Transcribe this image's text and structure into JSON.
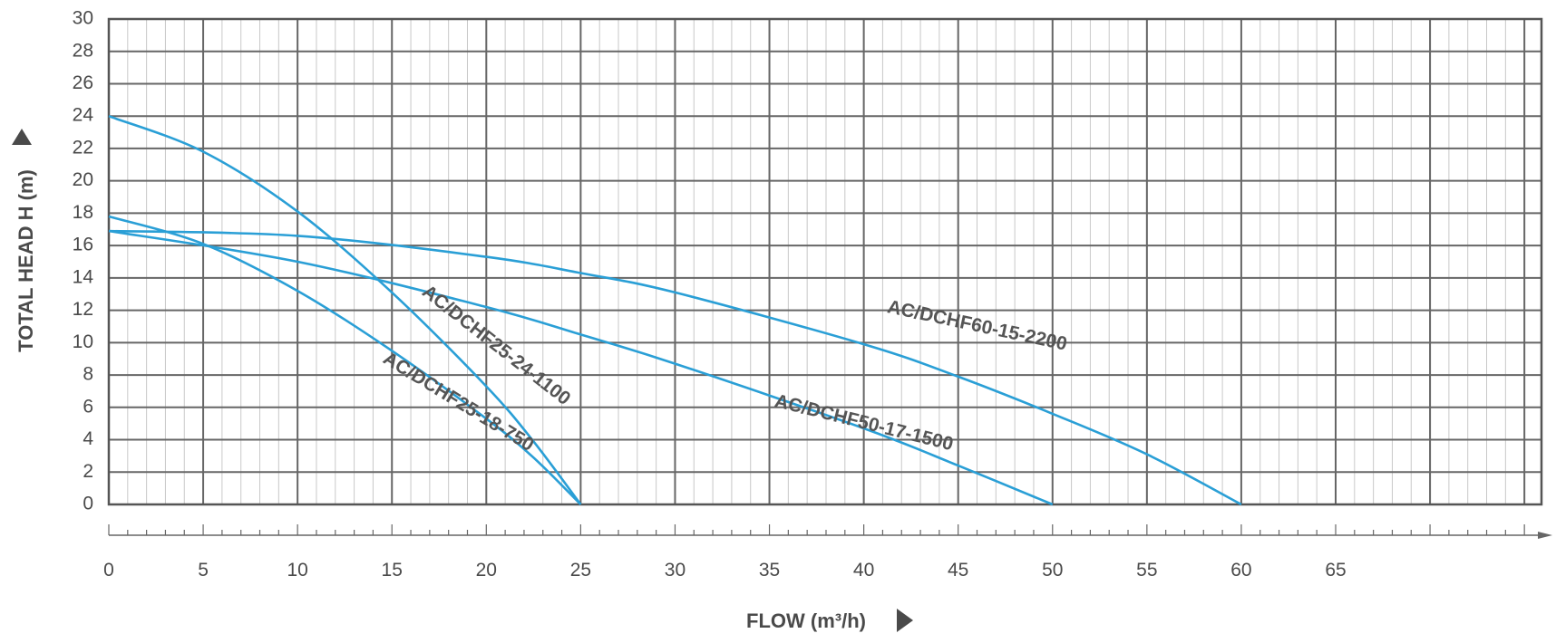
{
  "chart_data": {
    "type": "line",
    "xlabel": "FLOW (m³/h)",
    "ylabel": "TOTAL HEAD H (m)",
    "xlim": [
      0,
      70
    ],
    "ylim": [
      0,
      30
    ],
    "x_ticks": [
      "0",
      "5",
      "10",
      "15",
      "20",
      "25",
      "30",
      "35",
      "40",
      "45",
      "50",
      "55",
      "60",
      "65"
    ],
    "y_ticks": [
      "0",
      "2",
      "4",
      "6",
      "8",
      "10",
      "12",
      "14",
      "16",
      "18",
      "20",
      "22",
      "24",
      "26",
      "28",
      "30"
    ],
    "grid": true,
    "line_color": "#2a9fd6",
    "series": [
      {
        "name": "AC/DCHF25-24-1100",
        "x": [
          0,
          5,
          10,
          15,
          20,
          22.5,
          25
        ],
        "y": [
          24,
          21.8,
          18.1,
          13.1,
          7.3,
          3.9,
          0
        ]
      },
      {
        "name": "AC/DCHF25-18-750",
        "x": [
          0,
          5,
          10,
          15,
          20,
          22.5,
          25
        ],
        "y": [
          17.8,
          16.1,
          13.2,
          9.5,
          5.3,
          2.9,
          0
        ]
      },
      {
        "name": "AC/DCHF50-17-1500",
        "x": [
          0,
          10,
          20,
          25,
          30,
          40,
          45,
          50
        ],
        "y": [
          16.9,
          15.0,
          12.2,
          10.5,
          8.7,
          4.7,
          2.4,
          0
        ]
      },
      {
        "name": "AC/DCHF60-15-2200",
        "x": [
          0,
          10,
          20,
          25,
          30,
          40,
          45,
          50,
          55,
          60
        ],
        "y": [
          16.9,
          16.6,
          15.3,
          14.3,
          13.1,
          9.9,
          7.9,
          5.6,
          3.1,
          0
        ]
      }
    ]
  }
}
